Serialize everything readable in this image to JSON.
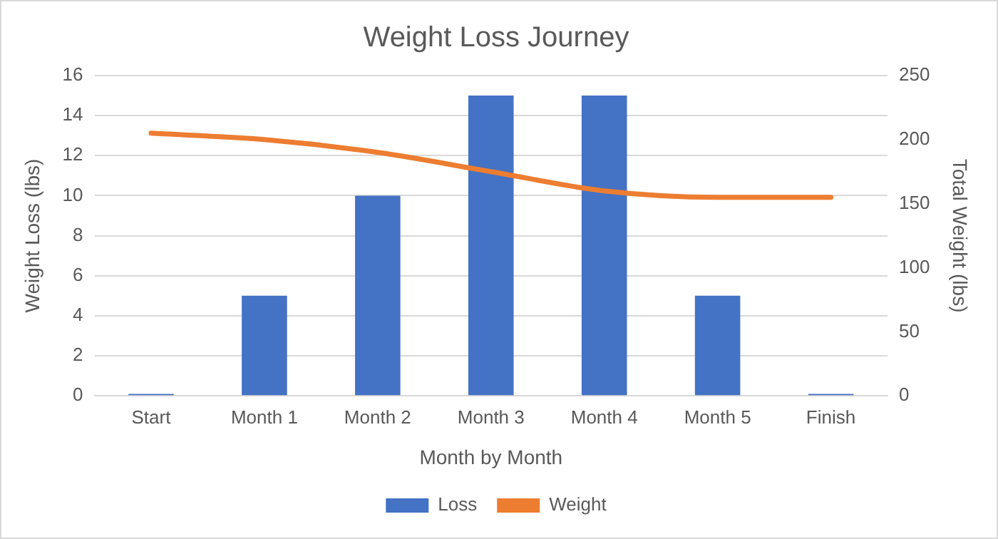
{
  "chart_data": {
    "type": "bar",
    "title": "Weight Loss Journey",
    "xlabel": "Month by Month",
    "ylabel": "Weight Loss (lbs)",
    "y2label": "Total Weight (lbs)",
    "categories": [
      "Start",
      "Month 1",
      "Month 2",
      "Month 3",
      "Month 4",
      "Month 5",
      "Finish"
    ],
    "series": [
      {
        "name": "Loss",
        "color": "#4472c4",
        "values": [
          0.1,
          5,
          10,
          15,
          15,
          5,
          0.1
        ]
      },
      {
        "name": "Weight",
        "type": "line",
        "axis": "y2",
        "color": "#ed7d31",
        "values": [
          205,
          200,
          190,
          175,
          160,
          155,
          155
        ]
      }
    ],
    "ylim": [
      0,
      16
    ],
    "yticks": [
      0,
      2,
      4,
      6,
      8,
      10,
      12,
      14,
      16
    ],
    "y2lim": [
      0,
      250
    ],
    "y2ticks": [
      0,
      50,
      100,
      150,
      200,
      250
    ],
    "grid": "y",
    "legend": "bottom",
    "marker": "none"
  }
}
